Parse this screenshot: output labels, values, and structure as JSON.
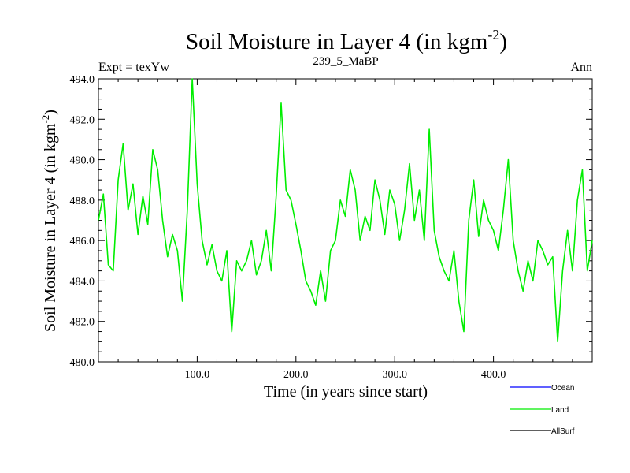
{
  "header": {
    "title_main": "Soil Moisture in Layer 4 (in kgm",
    "title_sup": "-2",
    "title_close": ")",
    "left": "Expt = texYw",
    "center": "239_5_MaBP",
    "right": "Ann"
  },
  "chart_data": {
    "type": "line",
    "xlabel": "Time (in years since start)",
    "ylabel_main": "Soil Moisture in Layer 4 (in kgm",
    "ylabel_sup": "-2",
    "ylabel_close": ")",
    "xlim": [
      0,
      500
    ],
    "ylim": [
      480,
      494
    ],
    "xticks": [
      100,
      200,
      300,
      400
    ],
    "xtick_labels": [
      "100.0",
      "200.0",
      "300.0",
      "400.0"
    ],
    "yticks": [
      480,
      482,
      484,
      486,
      488,
      490,
      492,
      494
    ],
    "ytick_labels": [
      "480.0",
      "482.0",
      "484.0",
      "486.0",
      "488.0",
      "490.0",
      "492.0",
      "494.0"
    ],
    "series": [
      {
        "name": "Land",
        "color": "#00ee00",
        "x": [
          0,
          5,
          10,
          15,
          20,
          25,
          30,
          35,
          40,
          45,
          50,
          55,
          60,
          65,
          70,
          75,
          80,
          85,
          90,
          95,
          100,
          105,
          110,
          115,
          120,
          125,
          130,
          135,
          140,
          145,
          150,
          155,
          160,
          165,
          170,
          175,
          180,
          185,
          190,
          195,
          200,
          205,
          210,
          215,
          220,
          225,
          230,
          235,
          240,
          245,
          250,
          255,
          260,
          265,
          270,
          275,
          280,
          285,
          290,
          295,
          300,
          305,
          310,
          315,
          320,
          325,
          330,
          335,
          340,
          345,
          350,
          355,
          360,
          365,
          370,
          375,
          380,
          385,
          390,
          395,
          400,
          405,
          410,
          415,
          420,
          425,
          430,
          435,
          440,
          445,
          450,
          455,
          460,
          465,
          470,
          475,
          480,
          485,
          490,
          495,
          500
        ],
        "values": [
          487.0,
          488.3,
          484.8,
          484.5,
          489.0,
          490.8,
          487.5,
          488.8,
          486.3,
          488.2,
          486.8,
          490.5,
          489.5,
          487.0,
          485.2,
          486.3,
          485.5,
          483.0,
          487.5,
          494.0,
          488.8,
          486.0,
          484.8,
          485.8,
          484.5,
          484.0,
          485.5,
          481.5,
          485.0,
          484.5,
          485.0,
          486.0,
          484.3,
          485.0,
          486.5,
          484.5,
          488.2,
          492.8,
          488.5,
          488.0,
          486.8,
          485.5,
          484.0,
          483.5,
          482.8,
          484.5,
          483.0,
          485.5,
          486.0,
          488.0,
          487.2,
          489.5,
          488.5,
          486.0,
          487.2,
          486.5,
          489.0,
          488.0,
          486.3,
          488.5,
          487.8,
          486.0,
          487.5,
          489.8,
          487.0,
          488.5,
          486.0,
          491.5,
          486.5,
          485.2,
          484.5,
          484.0,
          485.5,
          483.0,
          481.5,
          487.0,
          489.0,
          486.2,
          488.0,
          487.0,
          486.5,
          485.5,
          487.5,
          490.0,
          486.0,
          484.5,
          483.5,
          485.0,
          484.0,
          486.0,
          485.5,
          484.8,
          485.2,
          481.0,
          484.5,
          486.5,
          484.5,
          488.0,
          489.5,
          484.5,
          486.0
        ]
      },
      {
        "name": "Ocean",
        "color": "#0000ff",
        "x": [],
        "values": []
      },
      {
        "name": "AllSurf",
        "color": "#000000",
        "x": [],
        "values": []
      }
    ],
    "legend": [
      "Ocean",
      "Land",
      "AllSurf"
    ],
    "legend_position": "bottom-right",
    "grid": false
  }
}
